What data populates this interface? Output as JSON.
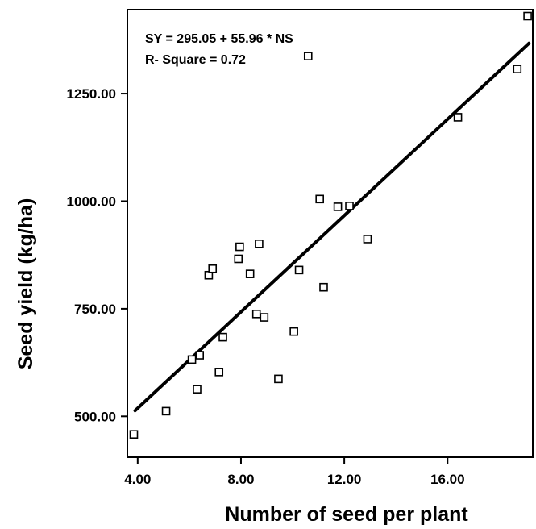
{
  "chart_data": {
    "type": "scatter",
    "title": "",
    "xlabel": "Number of seed per plant",
    "ylabel": "Seed yield (kg/ha)",
    "xlim": [
      3.6,
      19.3
    ],
    "ylim": [
      405,
      1445
    ],
    "xticks": [
      "4.00",
      "8.00",
      "12.00",
      "16.00"
    ],
    "xtick_values": [
      4,
      8,
      12,
      16
    ],
    "yticks": [
      "500.00",
      "750.00",
      "1000.00",
      "1250.00"
    ],
    "ytick_values": [
      500,
      750,
      1000,
      1250
    ],
    "grid": false,
    "series": [
      {
        "marker": "open-square",
        "points": [
          {
            "x": 3.85,
            "y": 458
          },
          {
            "x": 5.1,
            "y": 512
          },
          {
            "x": 6.1,
            "y": 632
          },
          {
            "x": 6.3,
            "y": 563
          },
          {
            "x": 6.4,
            "y": 642
          },
          {
            "x": 6.75,
            "y": 828
          },
          {
            "x": 6.9,
            "y": 843
          },
          {
            "x": 7.15,
            "y": 603
          },
          {
            "x": 7.3,
            "y": 684
          },
          {
            "x": 7.9,
            "y": 866
          },
          {
            "x": 7.95,
            "y": 894
          },
          {
            "x": 8.35,
            "y": 831
          },
          {
            "x": 8.6,
            "y": 738
          },
          {
            "x": 8.7,
            "y": 901
          },
          {
            "x": 8.9,
            "y": 730
          },
          {
            "x": 9.45,
            "y": 587
          },
          {
            "x": 10.05,
            "y": 697
          },
          {
            "x": 10.25,
            "y": 840
          },
          {
            "x": 10.6,
            "y": 1337
          },
          {
            "x": 11.05,
            "y": 1005
          },
          {
            "x": 11.2,
            "y": 800
          },
          {
            "x": 11.75,
            "y": 987
          },
          {
            "x": 12.2,
            "y": 989
          },
          {
            "x": 12.9,
            "y": 912
          },
          {
            "x": 16.4,
            "y": 1195
          },
          {
            "x": 18.7,
            "y": 1307
          },
          {
            "x": 19.1,
            "y": 1430
          }
        ]
      }
    ],
    "fit_line": {
      "intercept": 295.05,
      "slope": 55.96,
      "x_range": [
        3.9,
        19.15
      ]
    },
    "annotations": [
      "SY = 295.05 + 55.96 * NS",
      "R- Square = 0.72"
    ]
  }
}
